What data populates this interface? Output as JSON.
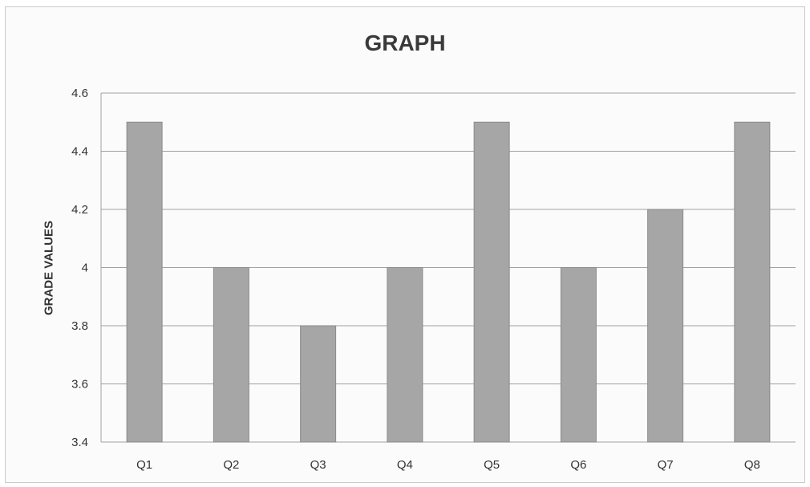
{
  "chart_data": {
    "type": "bar",
    "title": "GRAPH",
    "xlabel": "",
    "ylabel": "GRADE VALUES",
    "categories": [
      "Q1",
      "Q2",
      "Q3",
      "Q4",
      "Q5",
      "Q6",
      "Q7",
      "Q8"
    ],
    "values": [
      4.5,
      4.0,
      3.8,
      4.0,
      4.5,
      4.0,
      4.2,
      4.5
    ],
    "ylim": [
      3.4,
      4.6
    ],
    "yticks": [
      "3.4",
      "3.6",
      "3.8",
      "4",
      "4.2",
      "4.4",
      "4.6"
    ],
    "grid": true,
    "bar_color": "#a6a6a6",
    "bar_outline_color": "#8a8a8a",
    "grid_color": "#a0a0a0"
  }
}
